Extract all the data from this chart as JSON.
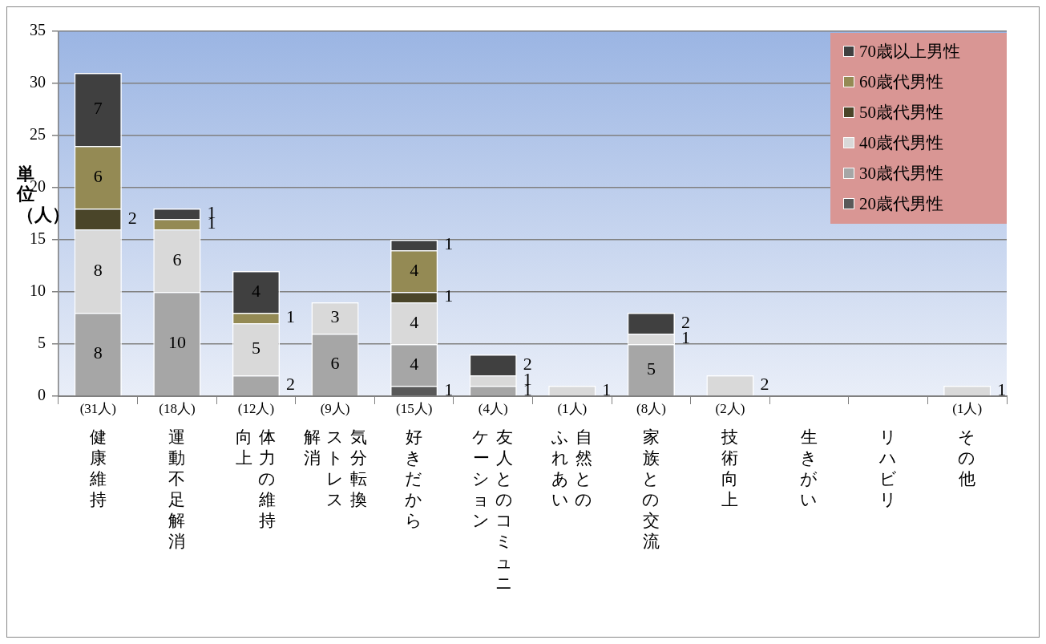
{
  "chart_data": {
    "type": "bar",
    "stacked": true,
    "ylabel": "単位（人）",
    "categories": [
      "健康維持",
      "運動不足解消",
      "体力の維持向上",
      "気分転換ストレス解消",
      "好きだから",
      "友人とのコミュニケーション",
      "自然とのふれあい",
      "家族との交流",
      "技術向上",
      "生きがい",
      "リハビリ",
      "その他"
    ],
    "series": [
      {
        "name": "20歳代男性",
        "color": "#595959",
        "values": [
          0,
          0,
          0,
          0,
          1,
          0,
          0,
          0,
          0,
          0,
          0,
          0
        ],
        "value_labels": [
          null,
          null,
          null,
          null,
          "1",
          null,
          null,
          null,
          null,
          null,
          null,
          null
        ]
      },
      {
        "name": "30歳代男性",
        "color": "#a6a6a6",
        "values": [
          8,
          10,
          2,
          6,
          4,
          1,
          0,
          5,
          0,
          0,
          0,
          0
        ],
        "value_labels": [
          "8",
          "10",
          "2",
          "6",
          "4",
          "1",
          null,
          "5",
          null,
          null,
          null,
          null
        ]
      },
      {
        "name": "40歳代男性",
        "color": "#d9d9d9",
        "values": [
          8,
          6,
          5,
          3,
          4,
          1,
          1,
          1,
          2,
          0,
          0,
          1
        ],
        "value_labels": [
          "8",
          "6",
          "5",
          "3",
          "4",
          "1",
          "1",
          "1",
          "2",
          null,
          null,
          "1"
        ]
      },
      {
        "name": "50歳代男性",
        "color": "#4a4529",
        "values": [
          2,
          0,
          0,
          0,
          1,
          0,
          0,
          0,
          0,
          0,
          0,
          0
        ],
        "value_labels": [
          "2",
          null,
          null,
          null,
          "1",
          null,
          null,
          null,
          null,
          null,
          null,
          null
        ]
      },
      {
        "name": "60歳代男性",
        "color": "#948a54",
        "values": [
          6,
          1,
          1,
          0,
          4,
          0,
          0,
          0,
          0,
          0,
          0,
          0
        ],
        "value_labels": [
          "6",
          "1",
          "1",
          null,
          "4",
          null,
          null,
          null,
          null,
          null,
          null,
          null
        ]
      },
      {
        "name": "70歳以上男性",
        "color": "#404040",
        "values": [
          7,
          1,
          4,
          0,
          1,
          2,
          0,
          2,
          0,
          0,
          0,
          0
        ],
        "value_labels": [
          "7",
          "1",
          "4",
          null,
          "1",
          "2",
          null,
          "2",
          null,
          null,
          null,
          null
        ]
      }
    ],
    "totals": [
      "(31人)",
      "(18人)",
      "(12人)",
      "(9人)",
      "(15人)",
      "(4人)",
      "(1人)",
      "(8人)",
      "(2人)",
      null,
      null,
      "(1人)"
    ],
    "ylim": [
      0,
      35
    ],
    "yticks": [
      0,
      5,
      10,
      15,
      20,
      25,
      30,
      35
    ],
    "grid": "y",
    "legend": "top right"
  }
}
